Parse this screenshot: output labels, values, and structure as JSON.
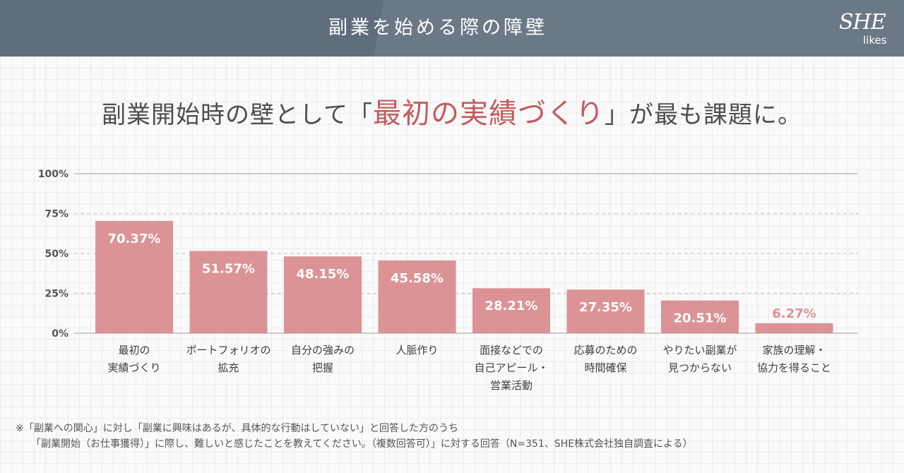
{
  "header": {
    "title": "副業を始める際の障壁",
    "logo_main": "SHE",
    "logo_sub": "likes"
  },
  "headline": {
    "before": "副業開始時の壁として「",
    "accent": "最初の実績づくり",
    "after": "」が最も課題に。"
  },
  "chart_data": {
    "type": "bar",
    "title": "副業を始める際の障壁",
    "ylim": [
      0,
      100
    ],
    "yticks": [
      "0%",
      "25%",
      "50%",
      "75%",
      "100%"
    ],
    "yticks_values": [
      0,
      25,
      50,
      75,
      100
    ],
    "categories": [
      "最初の\n実績づくり",
      "ポートフォリオの\n拡充",
      "自分の強みの\n把握",
      "人脈作り",
      "面接などでの\n自己アピール・\n営業活動",
      "応募のための\n時間確保",
      "やりたい副業が\n見つからない",
      "家族の理解・\n協力を得ること"
    ],
    "values": [
      70.37,
      51.57,
      48.15,
      45.58,
      28.21,
      27.35,
      20.51,
      6.27
    ],
    "value_labels": [
      "70.37%",
      "51.57%",
      "48.15%",
      "45.58%",
      "28.21%",
      "27.35%",
      "20.51%",
      "6.27%"
    ],
    "bar_color": "#dc9395"
  },
  "footnote": {
    "line1": "※「副業への関心」に対し「副業に興味はあるが、具体的な行動はしていない」と回答した方のうち",
    "line2": "「副業開始（お仕事獲得）」に際し、難しいと感じたことを教えてください。（複数回答可）」に対する回答（N=351、SHE株式会社独自調査による）"
  }
}
